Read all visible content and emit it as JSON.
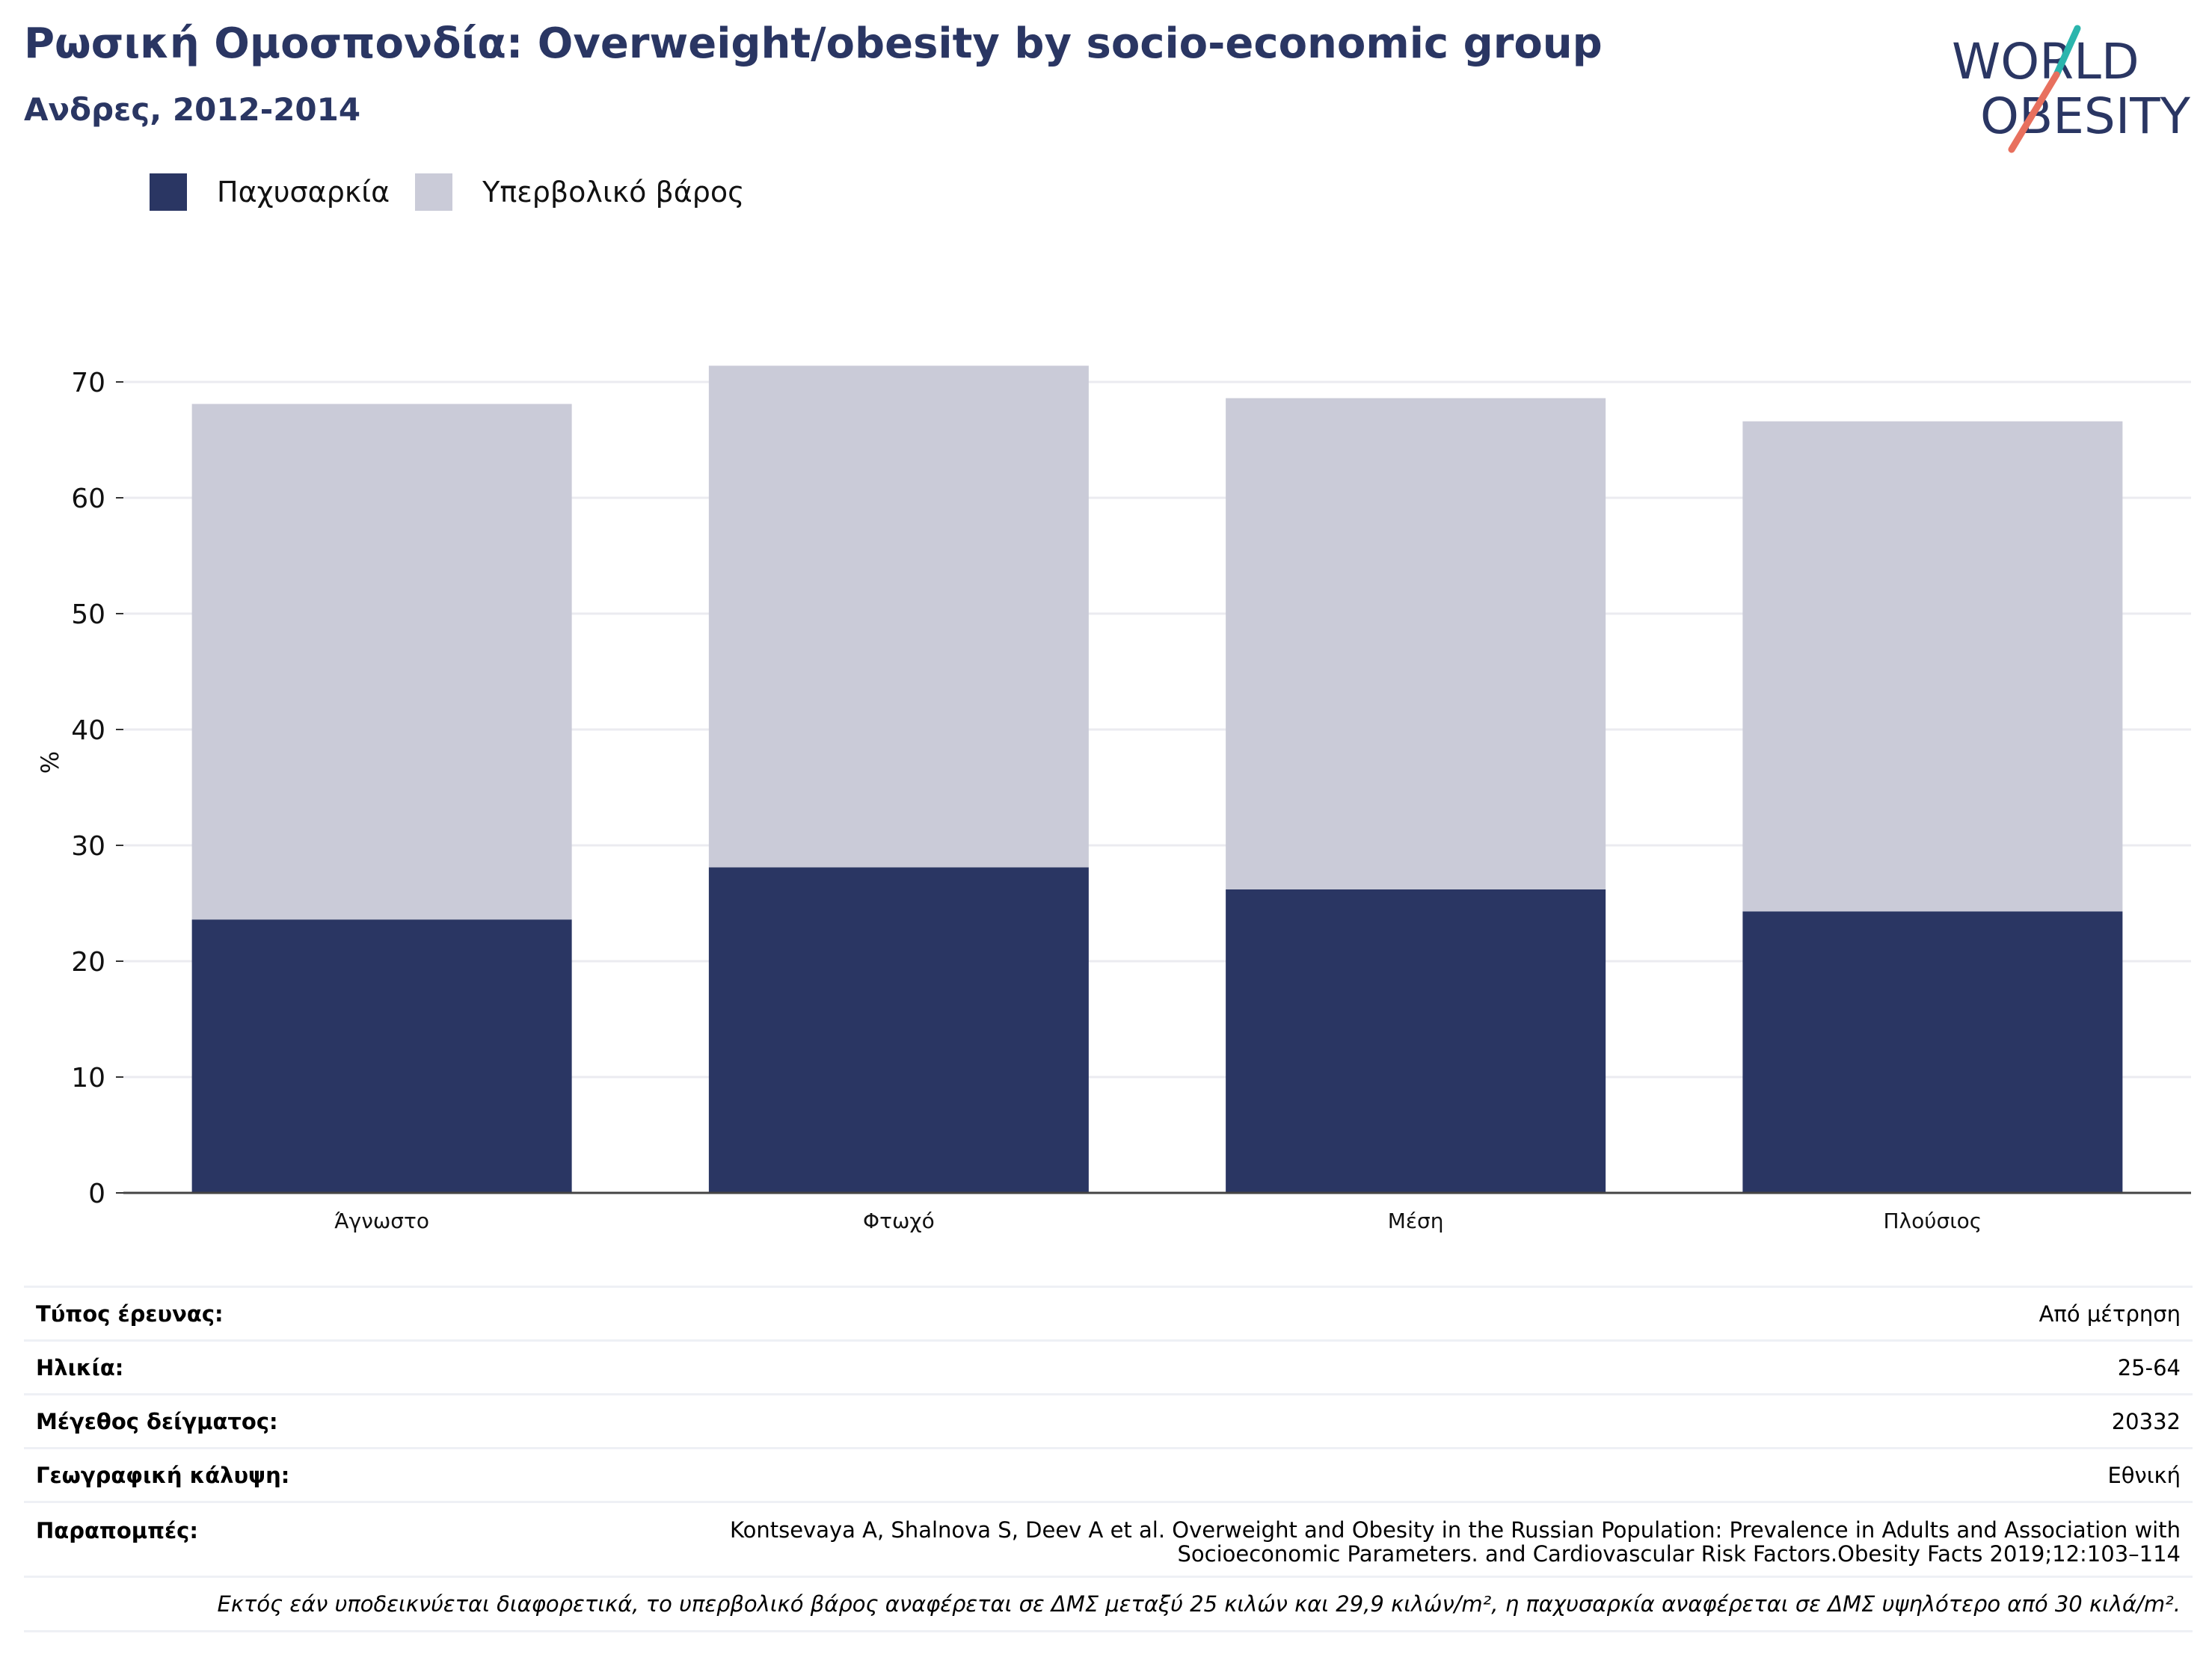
{
  "header": {
    "title": "Ρωσική Ομοσπονδία: Overweight/obesity by socio-economic group",
    "subtitle": "Ανδρες, 2012-2014"
  },
  "logo": {
    "line1": "WORLD",
    "line2": "OBESITY"
  },
  "legend": [
    {
      "label": "Παχυσαρκία",
      "color": "#2a3663"
    },
    {
      "label": "Υπερβολικό βάρος",
      "color": "#cacbd8"
    }
  ],
  "chart_data": {
    "type": "bar",
    "stacked": true,
    "categories": [
      "Άγνωστο",
      "Φτωχό",
      "Μέση",
      "Πλούσιος"
    ],
    "series": [
      {
        "name": "Παχυσαρκία",
        "values": [
          23.6,
          28.1,
          26.2,
          24.3
        ],
        "color": "#2a3663"
      },
      {
        "name": "Υπερβολικό βάρος",
        "values": [
          44.5,
          43.3,
          42.4,
          42.3
        ],
        "color": "#cacbd8"
      }
    ],
    "ylabel": "%",
    "yticks": [
      0,
      10,
      20,
      30,
      40,
      50,
      60,
      70
    ],
    "ylim": [
      0,
      70
    ],
    "grid": true,
    "legend_position": "top-left"
  },
  "meta": [
    {
      "key": "Τύπος έρευνας:",
      "value": "Από μέτρηση"
    },
    {
      "key": "Ηλικία:",
      "value": "25-64"
    },
    {
      "key": "Μέγεθος δείγματος:",
      "value": "20332"
    },
    {
      "key": "Γεωγραφική κάλυψη:",
      "value": "Εθνική"
    }
  ],
  "references": {
    "key": "Παραπομπές:",
    "line1": "Kontsevaya A, Shalnova S, Deev A et al. Overweight and Obesity in the Russian Population: Prevalence in Adults and Association with",
    "line2": "Socioeconomic Parameters. and Cardiovascular Risk Factors.Obesity Facts 2019;12:103–114"
  },
  "footnote": "Εκτός εάν υποδεικνύεται διαφορετικά, το υπερβολικό βάρος αναφέρεται σε ΔΜΣ μεταξύ 25 κιλών και 29,9 κιλών/m², η παχυσαρκία αναφέρεται σε ΔΜΣ υψηλότερο από 30 κιλά/m²."
}
